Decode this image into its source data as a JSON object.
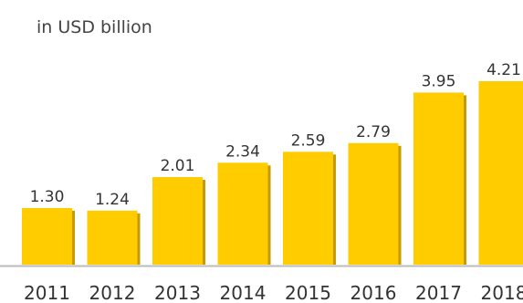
{
  "chart_data": {
    "type": "bar",
    "unit_label": "in USD billion",
    "categories": [
      "2011",
      "2012",
      "2013",
      "2014",
      "2015",
      "2016",
      "2017",
      "2018"
    ],
    "values": [
      1.3,
      1.24,
      2.01,
      2.34,
      2.59,
      2.79,
      3.95,
      4.21
    ],
    "value_labels": [
      "1.30",
      "1.24",
      "2.01",
      "2.34",
      "2.59",
      "2.79",
      "3.95",
      "4.21"
    ],
    "ylim": [
      0,
      4.21
    ],
    "grid": false,
    "colors": {
      "bar_fill": "#ffcc00",
      "bar_shadow": "#c79a00",
      "axis": "#bbbbbb"
    }
  }
}
